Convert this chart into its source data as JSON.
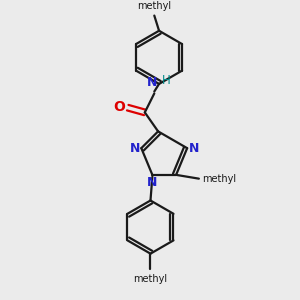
{
  "background_color": "#ebebeb",
  "bond_color": "#1a1a1a",
  "nitrogen_color": "#2222cc",
  "oxygen_color": "#dd0000",
  "nh_color": "#008b8b",
  "figsize": [
    3.0,
    3.0
  ],
  "dpi": 100,
  "xlim": [
    0,
    300
  ],
  "ylim": [
    0,
    300
  ]
}
